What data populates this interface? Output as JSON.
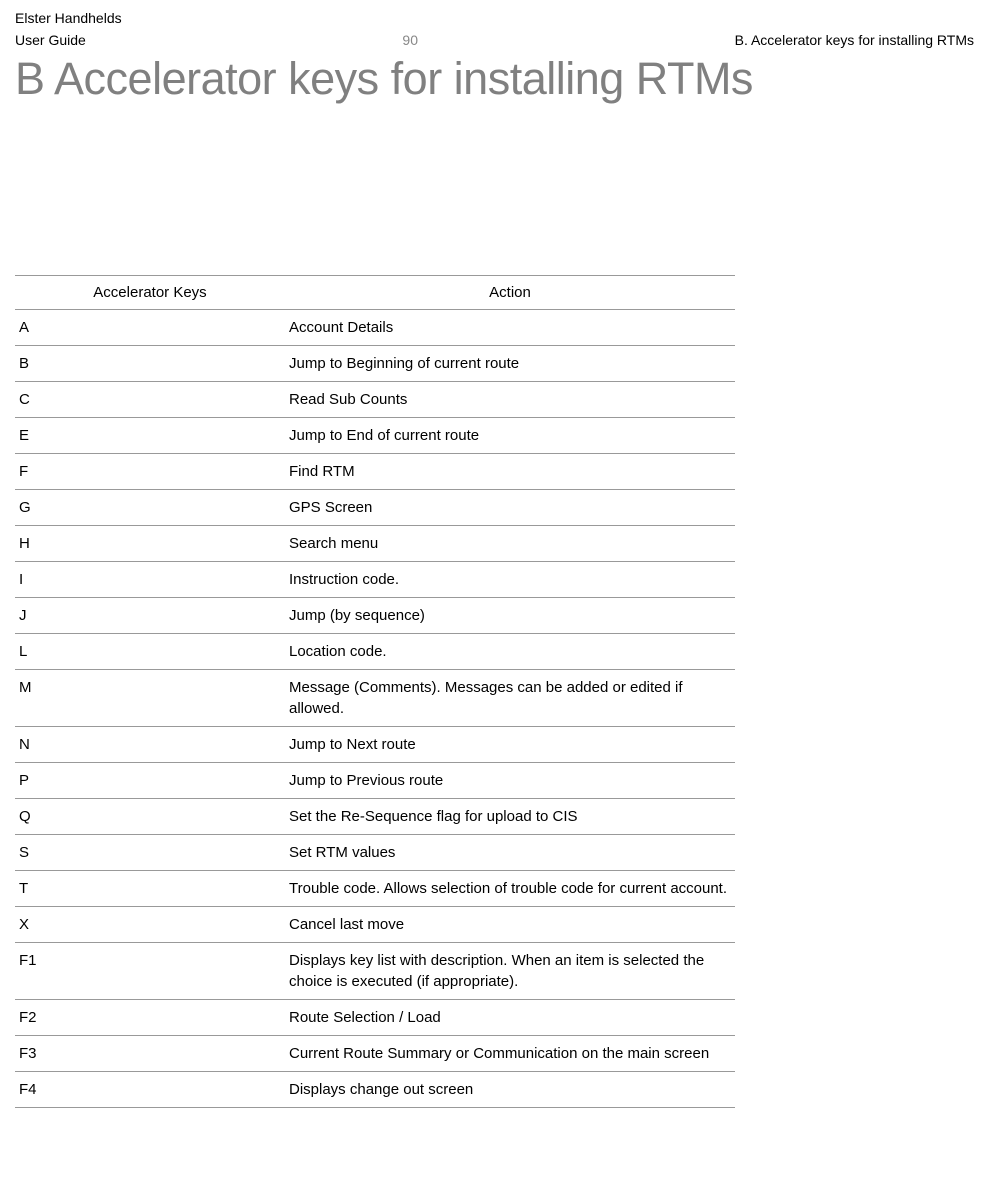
{
  "header": {
    "brand": "Elster Handhelds",
    "docname": "User Guide",
    "page_number": "90",
    "section": "B. Accelerator keys for installing RTMs"
  },
  "title": "B  Accelerator keys for installing RTMs",
  "table": {
    "columns": [
      "Accelerator Keys",
      "Action"
    ],
    "rows": [
      {
        "key": "A",
        "action": "Account Details"
      },
      {
        "key": "B",
        "action": "Jump to Beginning of current route"
      },
      {
        "key": "C",
        "action": "Read Sub Counts"
      },
      {
        "key": "E",
        "action": "Jump to End of current route"
      },
      {
        "key": "F",
        "action": "Find RTM"
      },
      {
        "key": "G",
        "action": "GPS Screen"
      },
      {
        "key": "H",
        "action": "Search menu"
      },
      {
        "key": "I",
        "action": "Instruction code."
      },
      {
        "key": "J",
        "action": "Jump (by sequence)"
      },
      {
        "key": "L",
        "action": "Location code."
      },
      {
        "key": "M",
        "action": "Message (Comments). Messages can be added or edited if allowed."
      },
      {
        "key": "N",
        "action": "Jump to Next route"
      },
      {
        "key": "P",
        "action": "Jump to Previous route"
      },
      {
        "key": "Q",
        "action": "Set the Re-Sequence flag for upload to CIS"
      },
      {
        "key": "S",
        "action": "Set RTM values"
      },
      {
        "key": "T",
        "action": "Trouble code. Allows selection of trouble code for current account."
      },
      {
        "key": "X",
        "action": "Cancel last move"
      },
      {
        "key": "F1",
        "action": "Displays key list with description. When an item is selected the choice is executed (if appropriate)."
      },
      {
        "key": "F2",
        "action": "Route Selection / Load"
      },
      {
        "key": "F3",
        "action": "Current Route Summary or Communication on the main screen"
      },
      {
        "key": "F4",
        "action": "Displays change out screen"
      }
    ]
  }
}
